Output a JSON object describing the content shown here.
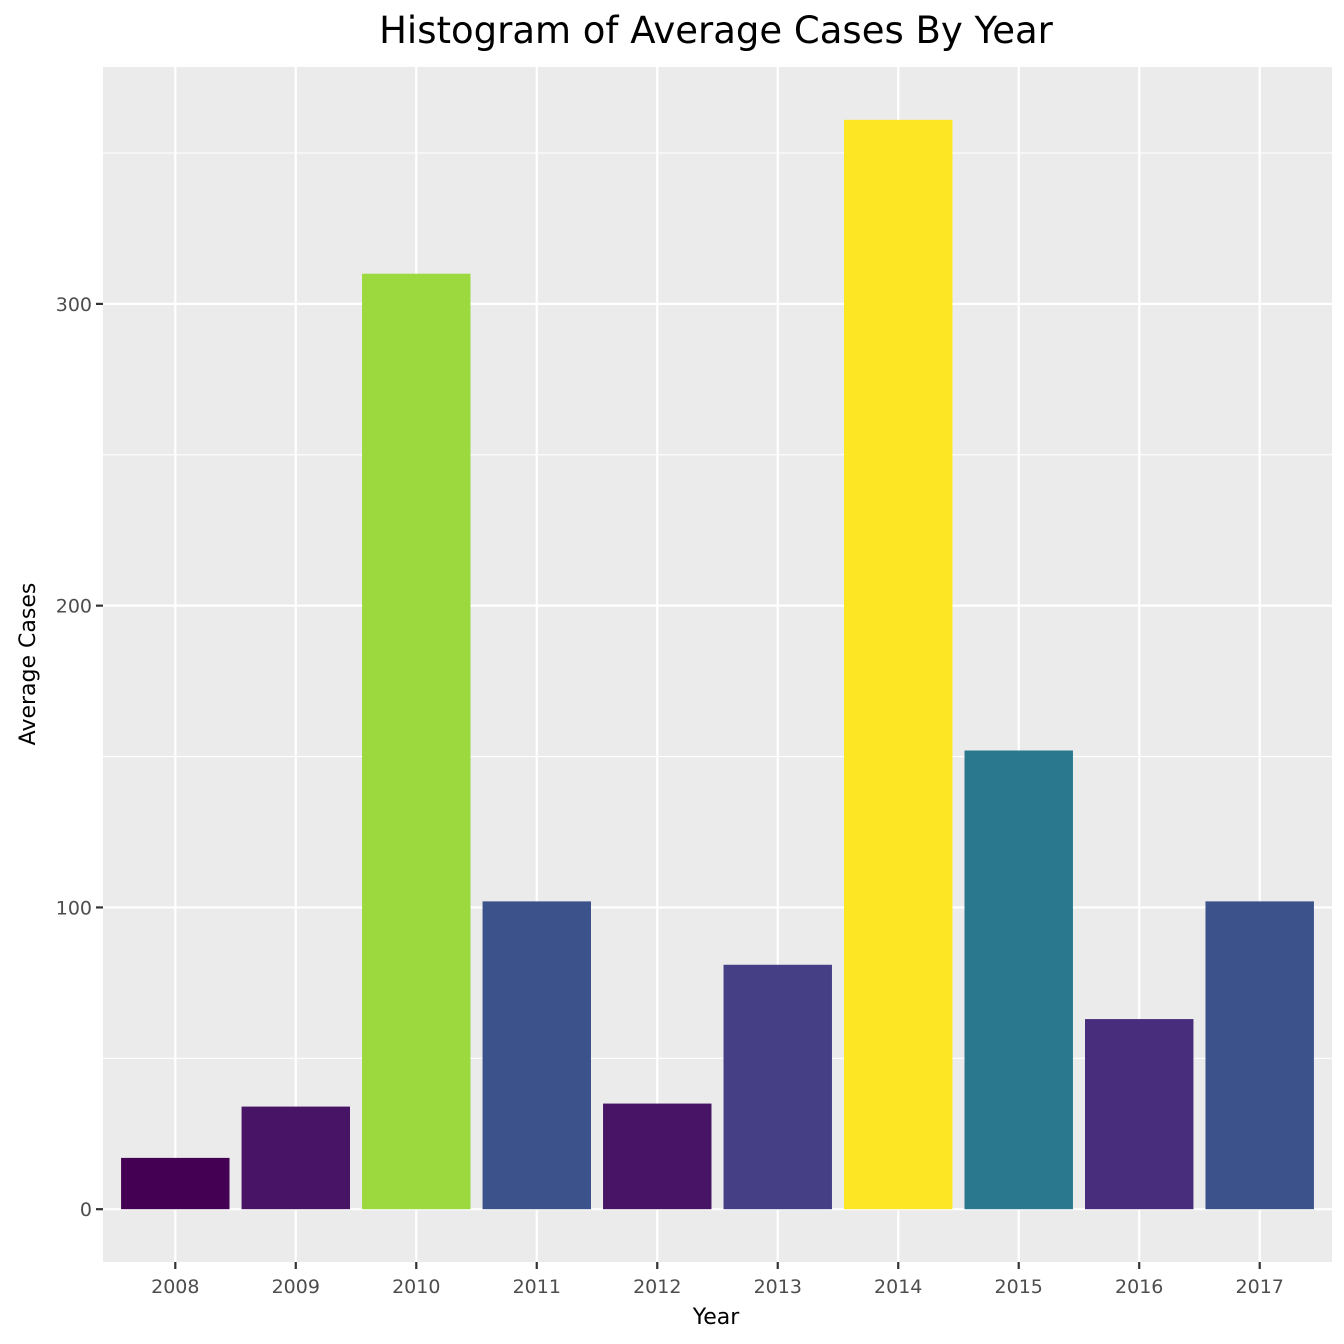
{
  "chart_data": {
    "type": "bar",
    "title": "Histogram of Average Cases By Year",
    "xlabel": "Year",
    "ylabel": "Average Cases",
    "categories": [
      "2008",
      "2009",
      "2010",
      "2011",
      "2012",
      "2013",
      "2014",
      "2015",
      "2016",
      "2017"
    ],
    "values": [
      17,
      34,
      310,
      102,
      35,
      81,
      361,
      152,
      63,
      102
    ],
    "bar_colors": [
      "#440154",
      "#481466",
      "#9bd93f",
      "#3b528b",
      "#481466",
      "#453f86",
      "#fde725",
      "#2a788e",
      "#482d7c",
      "#3b528b"
    ],
    "y_ticks": [
      0,
      100,
      200,
      300
    ],
    "ylim": [
      -17.5,
      378.5
    ],
    "grid": true,
    "legend": "none",
    "panel_background": "#ebebeb",
    "grid_color": "#ffffff"
  }
}
